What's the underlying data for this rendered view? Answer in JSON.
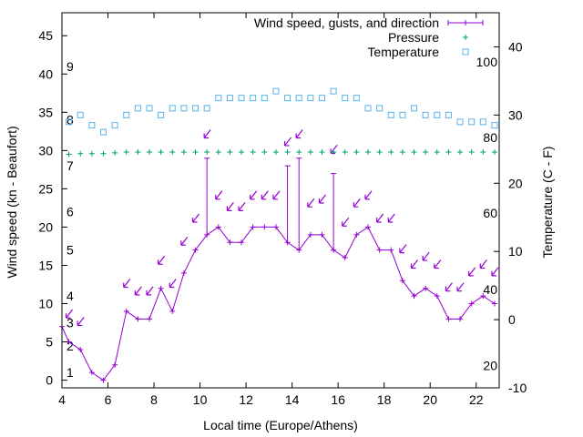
{
  "chart_data": {
    "type": "line",
    "title": "",
    "xlabel": "Local time (Europe/Athens)",
    "ylabel": "Wind speed (kn - Beaufort)",
    "y2label": "Temperature (C - F)",
    "xlim": [
      4,
      23
    ],
    "ylim": [
      -1,
      48
    ],
    "y2lim": [
      -10,
      45
    ],
    "grid": false,
    "legend_position": "top-right",
    "x_ticks": [
      4,
      6,
      8,
      10,
      12,
      14,
      16,
      18,
      20,
      22
    ],
    "y_ticks": [
      0,
      5,
      10,
      15,
      20,
      25,
      30,
      35,
      40,
      45
    ],
    "y2_ticks": [
      -10,
      0,
      10,
      20,
      30,
      40
    ],
    "beaufort_labels": [
      {
        "label": "1",
        "kn": 1
      },
      {
        "label": "2",
        "kn": 4.5
      },
      {
        "label": "3",
        "kn": 7.5
      },
      {
        "label": "4",
        "kn": 11
      },
      {
        "label": "5",
        "kn": 17
      },
      {
        "label": "6",
        "kn": 22
      },
      {
        "label": "7",
        "kn": 28
      },
      {
        "label": "8",
        "kn": 34
      },
      {
        "label": "9",
        "kn": 41
      }
    ],
    "fahrenheit_labels": [
      {
        "label": "20",
        "c": -6.7
      },
      {
        "label": "40",
        "c": 4.4
      },
      {
        "label": "60",
        "c": 15.6
      },
      {
        "label": "80",
        "c": 26.7
      },
      {
        "label": "100",
        "c": 37.8
      }
    ],
    "series": [
      {
        "name": "Wind speed, gusts, and direction",
        "color": "#9400d3",
        "x": [
          4.0,
          4.3,
          4.8,
          5.3,
          5.8,
          6.3,
          6.8,
          7.3,
          7.8,
          8.3,
          8.8,
          9.3,
          9.8,
          10.3,
          10.8,
          11.3,
          11.8,
          12.3,
          12.8,
          13.3,
          13.8,
          14.3,
          14.8,
          15.3,
          15.8,
          16.3,
          16.8,
          17.3,
          17.8,
          18.3,
          18.8,
          19.3,
          19.8,
          20.3,
          20.8,
          21.3,
          21.8,
          22.3,
          22.8
        ],
        "y": [
          7,
          5,
          4,
          1,
          0,
          2,
          9,
          8,
          8,
          12,
          9,
          14,
          17,
          19,
          20,
          18,
          18,
          20,
          20,
          20,
          18,
          17,
          19,
          19,
          17,
          16,
          19,
          20,
          17,
          17,
          13,
          11,
          12,
          11,
          8,
          8,
          10,
          11,
          10
        ],
        "gusts": [
          {
            "x": 10.3,
            "y": 29
          },
          {
            "x": 13.8,
            "y": 28
          },
          {
            "x": 14.3,
            "y": 29
          },
          {
            "x": 15.8,
            "y": 27
          }
        ],
        "direction_arrows": [
          {
            "x": 4.3,
            "y": 8.5
          },
          {
            "x": 4.8,
            "y": 7.5
          },
          {
            "x": 6.8,
            "y": 12.5
          },
          {
            "x": 7.3,
            "y": 11.5
          },
          {
            "x": 7.8,
            "y": 11.5
          },
          {
            "x": 8.3,
            "y": 15.5
          },
          {
            "x": 8.8,
            "y": 12.5
          },
          {
            "x": 9.3,
            "y": 18
          },
          {
            "x": 9.8,
            "y": 21
          },
          {
            "x": 10.3,
            "y": 32
          },
          {
            "x": 10.8,
            "y": 24
          },
          {
            "x": 11.3,
            "y": 22.5
          },
          {
            "x": 11.8,
            "y": 22.5
          },
          {
            "x": 12.3,
            "y": 24
          },
          {
            "x": 12.8,
            "y": 24
          },
          {
            "x": 13.3,
            "y": 24
          },
          {
            "x": 13.8,
            "y": 31
          },
          {
            "x": 14.3,
            "y": 32
          },
          {
            "x": 14.8,
            "y": 23
          },
          {
            "x": 15.3,
            "y": 23.5
          },
          {
            "x": 15.8,
            "y": 30
          },
          {
            "x": 16.3,
            "y": 20.5
          },
          {
            "x": 16.8,
            "y": 23
          },
          {
            "x": 17.3,
            "y": 24
          },
          {
            "x": 17.8,
            "y": 21
          },
          {
            "x": 18.3,
            "y": 21
          },
          {
            "x": 18.8,
            "y": 17
          },
          {
            "x": 19.3,
            "y": 15
          },
          {
            "x": 19.8,
            "y": 16
          },
          {
            "x": 20.3,
            "y": 15
          },
          {
            "x": 20.8,
            "y": 12
          },
          {
            "x": 21.3,
            "y": 12
          },
          {
            "x": 21.8,
            "y": 14
          },
          {
            "x": 22.3,
            "y": 15
          },
          {
            "x": 22.8,
            "y": 14
          }
        ]
      },
      {
        "name": "Pressure",
        "color": "#009e73",
        "x": [
          4.3,
          4.8,
          5.3,
          5.8,
          6.3,
          6.8,
          7.3,
          7.8,
          8.3,
          8.8,
          9.3,
          9.8,
          10.3,
          10.8,
          11.3,
          11.8,
          12.3,
          12.8,
          13.3,
          13.8,
          14.3,
          14.8,
          15.3,
          15.8,
          16.3,
          16.8,
          17.3,
          17.8,
          18.3,
          18.8,
          19.3,
          19.8,
          20.3,
          20.8,
          21.3,
          21.8,
          22.3,
          22.8
        ],
        "y": [
          29.5,
          29.6,
          29.6,
          29.6,
          29.7,
          29.8,
          29.8,
          29.8,
          29.8,
          29.8,
          29.8,
          29.8,
          29.8,
          29.8,
          29.8,
          29.8,
          29.8,
          29.8,
          29.8,
          29.8,
          29.8,
          29.8,
          29.8,
          29.8,
          29.8,
          29.8,
          29.8,
          29.8,
          29.8,
          29.8,
          29.8,
          29.8,
          29.8,
          29.8,
          29.8,
          29.8,
          29.8,
          29.8
        ]
      },
      {
        "name": "Temperature",
        "color": "#56b4e9",
        "x": [
          4.3,
          4.8,
          5.3,
          5.8,
          6.3,
          6.8,
          7.3,
          7.8,
          8.3,
          8.8,
          9.3,
          9.8,
          10.3,
          10.8,
          11.3,
          11.8,
          12.3,
          12.8,
          13.3,
          13.8,
          14.3,
          14.8,
          15.3,
          15.8,
          16.3,
          16.8,
          17.3,
          17.8,
          18.3,
          18.8,
          19.3,
          19.8,
          20.3,
          20.8,
          21.3,
          21.8,
          22.3,
          22.8
        ],
        "y": [
          29,
          30,
          28.5,
          27.5,
          28.5,
          30,
          31,
          31,
          30,
          31,
          31,
          31,
          31,
          32.5,
          32.5,
          32.5,
          32.5,
          32.5,
          33.5,
          32.5,
          32.5,
          32.5,
          32.5,
          33.5,
          32.5,
          32.5,
          31,
          31,
          30,
          30,
          31,
          30,
          30,
          30,
          29,
          29,
          29,
          28.5
        ]
      }
    ]
  }
}
